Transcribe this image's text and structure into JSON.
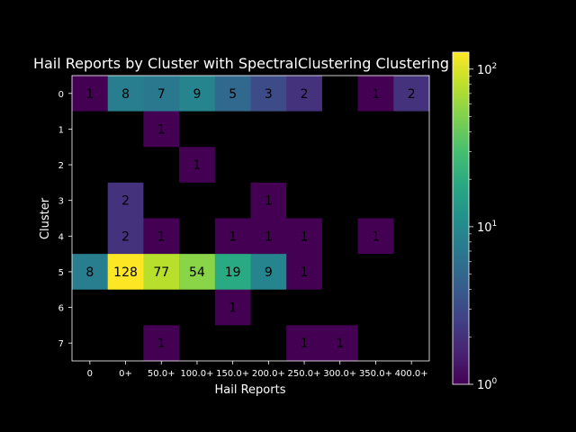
{
  "chart_data": {
    "type": "heatmap",
    "title": "Hail Reports by Cluster with SpectralClustering Clustering",
    "xlabel": "Hail Reports",
    "ylabel": "Cluster",
    "x_categories": [
      "0",
      "0+",
      "50.0+",
      "100.0+",
      "150.0+",
      "200.0+",
      "250.0+",
      "300.0+",
      "350.0+",
      "400.0+"
    ],
    "y_categories": [
      "0",
      "1",
      "2",
      "3",
      "4",
      "5",
      "6",
      "7"
    ],
    "values": [
      [
        1,
        8,
        7,
        9,
        5,
        3,
        2,
        0,
        1,
        2
      ],
      [
        0,
        0,
        1,
        0,
        0,
        0,
        0,
        0,
        0,
        0
      ],
      [
        0,
        0,
        0,
        1,
        0,
        0,
        0,
        0,
        0,
        0
      ],
      [
        0,
        2,
        0,
        0,
        0,
        1,
        0,
        0,
        0,
        0
      ],
      [
        0,
        2,
        1,
        0,
        1,
        1,
        1,
        0,
        1,
        0
      ],
      [
        8,
        128,
        77,
        54,
        19,
        9,
        1,
        0,
        0,
        0
      ],
      [
        0,
        0,
        0,
        0,
        1,
        0,
        0,
        0,
        0,
        0
      ],
      [
        0,
        0,
        1,
        0,
        0,
        0,
        1,
        1,
        0,
        0
      ]
    ],
    "colorscale": "viridis",
    "color_scale_type": "log",
    "color_range": [
      1,
      128
    ],
    "colorbar_ticks": [
      {
        "value": 1,
        "base": "10",
        "exp": "0"
      },
      {
        "value": 10,
        "base": "10",
        "exp": "1"
      },
      {
        "value": 100,
        "base": "10",
        "exp": "2"
      }
    ],
    "zero_color": "#000000",
    "background": "#000000"
  }
}
